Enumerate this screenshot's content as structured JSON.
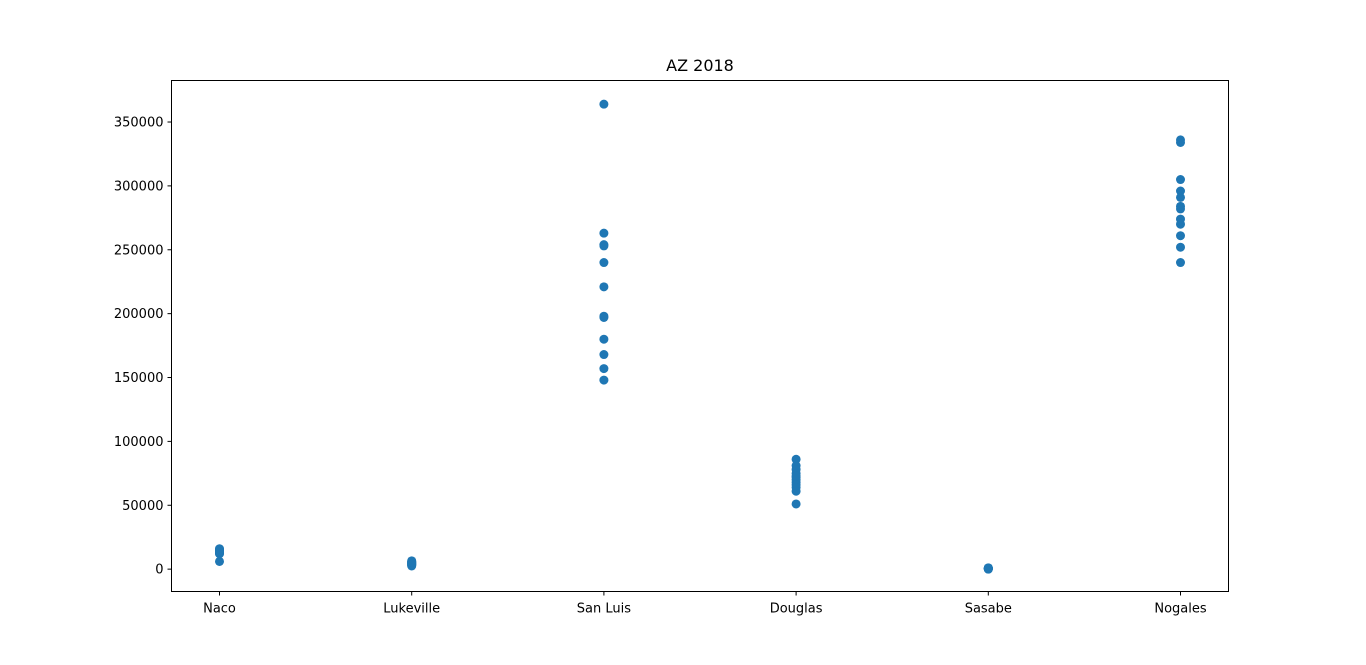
{
  "chart_data": {
    "type": "scatter",
    "title": "AZ 2018",
    "xlabel": "",
    "ylabel": "",
    "categories": [
      "Naco",
      "Lukeville",
      "San Luis",
      "Douglas",
      "Sasabe",
      "Nogales"
    ],
    "ylim": [
      -17500,
      382500
    ],
    "yticks": [
      0,
      50000,
      100000,
      150000,
      200000,
      250000,
      300000,
      350000
    ],
    "ytick_labels": [
      "0",
      "50000",
      "100000",
      "150000",
      "200000",
      "250000",
      "300000",
      "350000"
    ],
    "grid": false,
    "marker_color": "#1f77b4",
    "points": {
      "Naco": [
        6000,
        13000,
        14000,
        15000,
        16000,
        12500,
        13500,
        14500,
        15500,
        12000,
        13000,
        14000
      ],
      "Lukeville": [
        2500,
        3000,
        3500,
        4000,
        4500,
        5000,
        5500,
        6000,
        6500,
        3200,
        4200,
        5200
      ],
      "San Luis": [
        364000,
        263000,
        254000,
        253000,
        240000,
        221000,
        198000,
        197000,
        180000,
        168000,
        157000,
        148000
      ],
      "Douglas": [
        86000,
        81000,
        78000,
        75000,
        72000,
        70000,
        68000,
        66000,
        64000,
        61000,
        51000,
        73000
      ],
      "Sasabe": [
        0,
        200,
        400,
        600,
        800,
        1000,
        300,
        500,
        700,
        900,
        100,
        600
      ],
      "Nogales": [
        336000,
        334000,
        305000,
        296000,
        291000,
        284000,
        282000,
        274000,
        270000,
        261000,
        252000,
        240000
      ]
    }
  }
}
